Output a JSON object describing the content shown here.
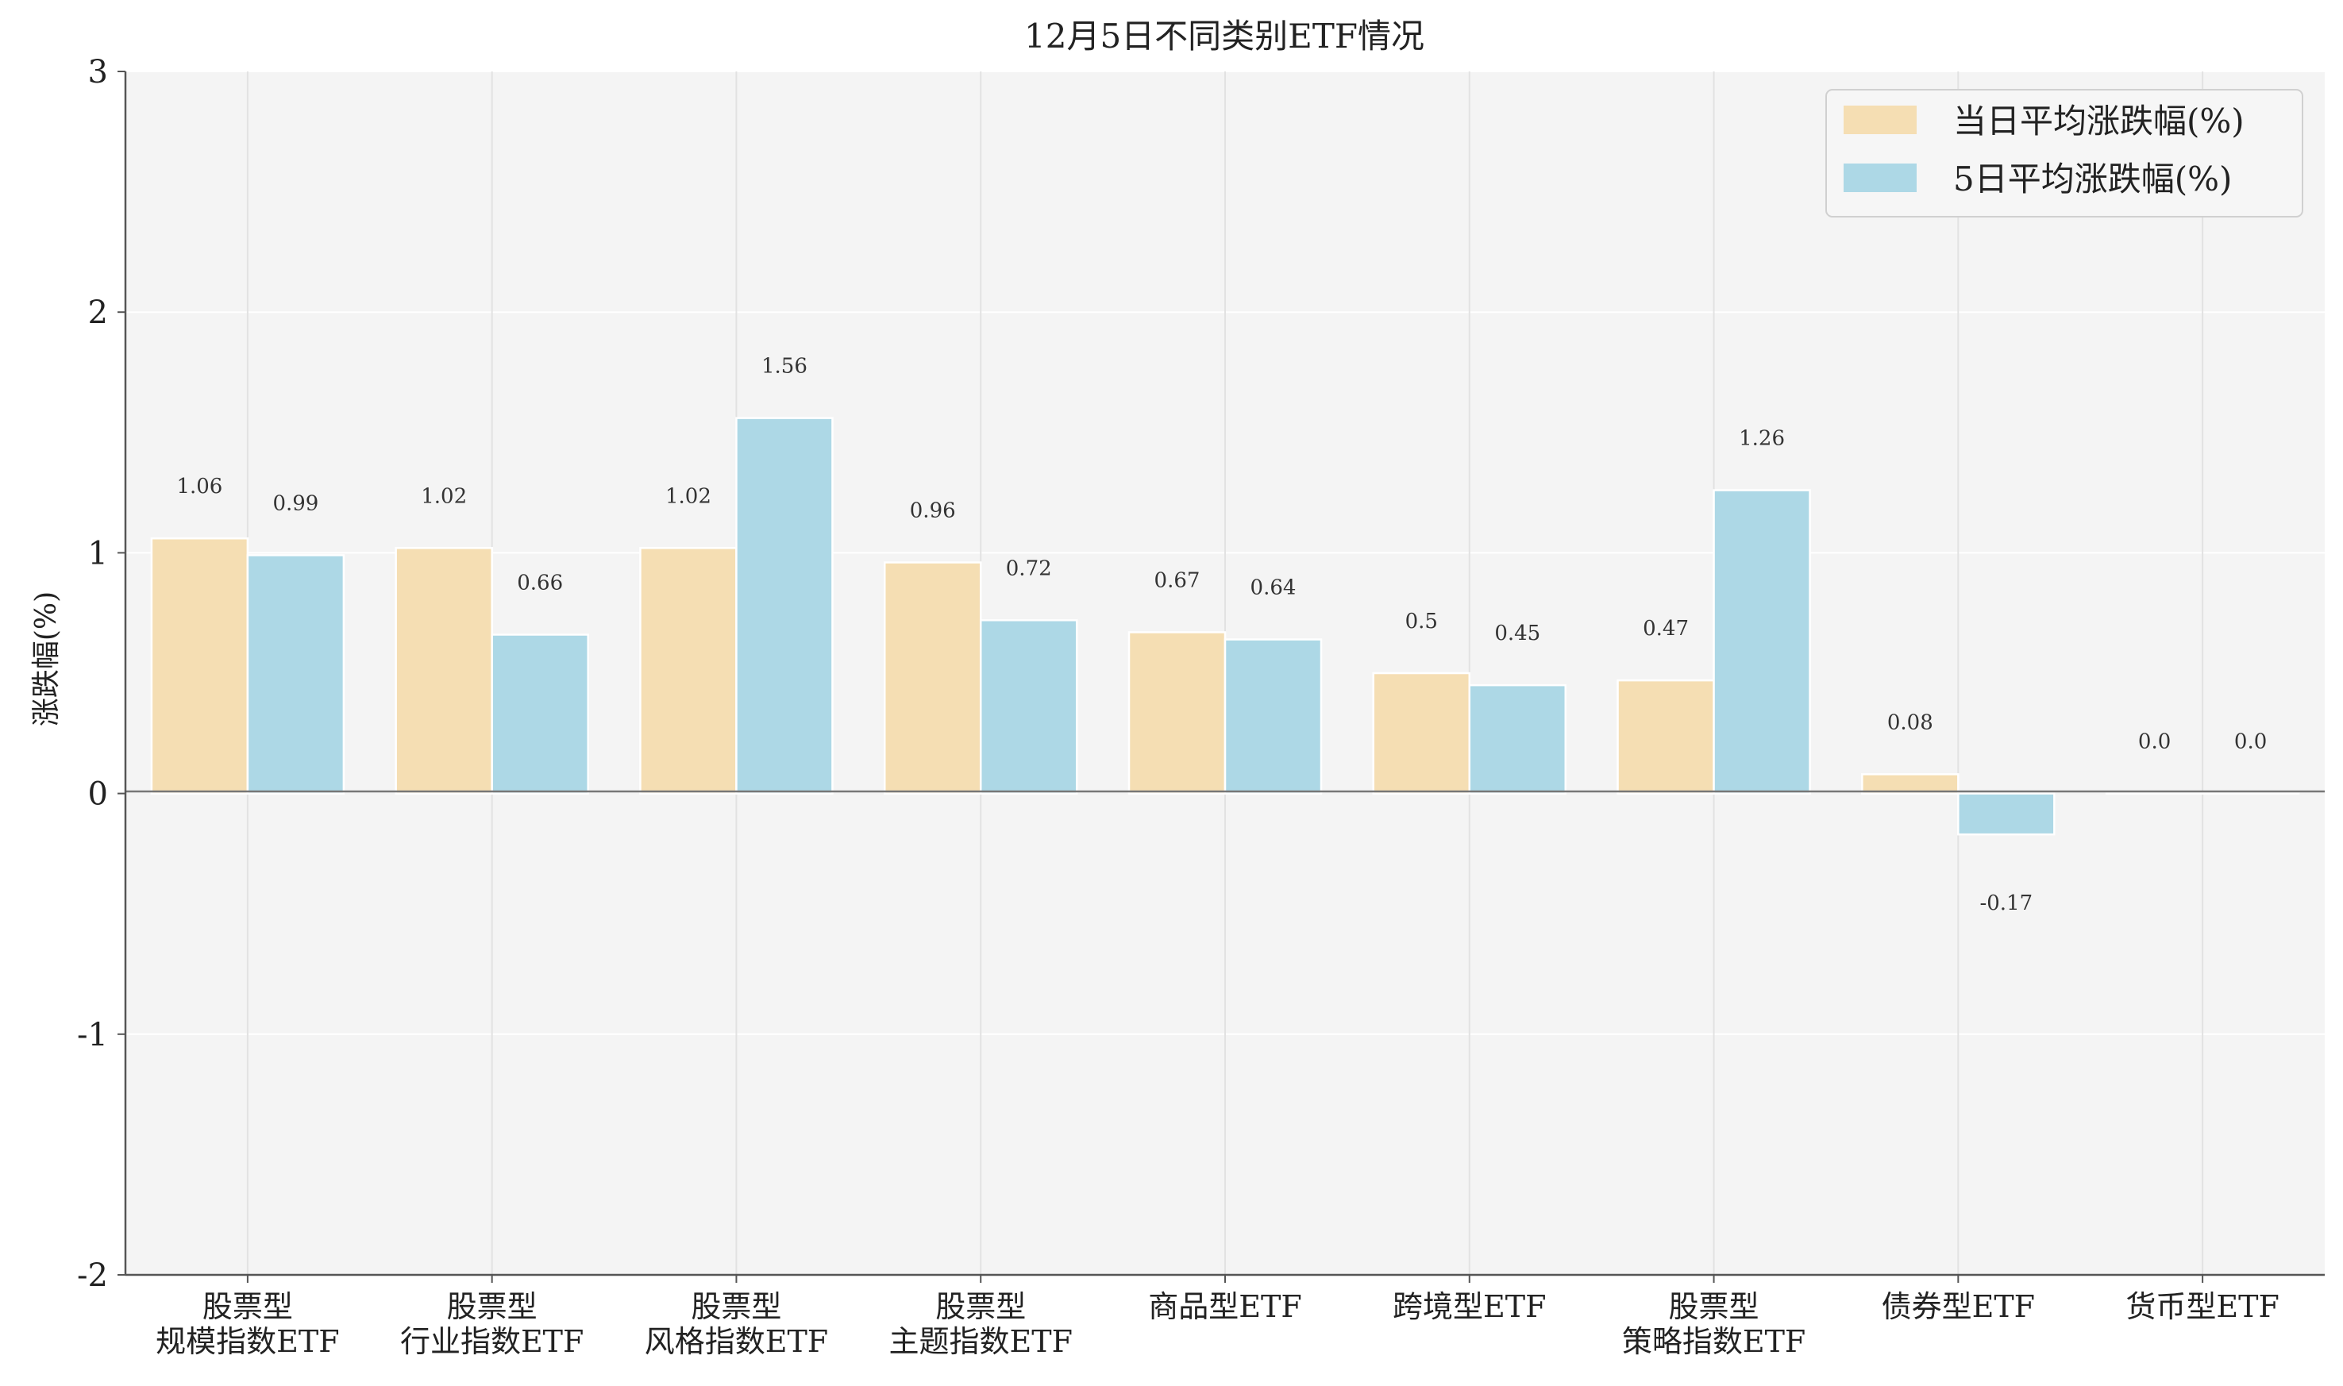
{
  "chart_data": {
    "type": "bar",
    "title": "12月5日不同类别ETF情况",
    "xlabel": "",
    "ylabel": "涨跌幅(%)",
    "ylim": [
      -2,
      3
    ],
    "yticks": [
      -2,
      -1,
      0,
      1,
      2,
      3
    ],
    "grid": true,
    "legend_position": "top-right",
    "categories": [
      [
        "股票型",
        "规模指数ETF"
      ],
      [
        "股票型",
        "行业指数ETF"
      ],
      [
        "股票型",
        "风格指数ETF"
      ],
      [
        "股票型",
        "主题指数ETF"
      ],
      [
        "商品型ETF"
      ],
      [
        "跨境型ETF"
      ],
      [
        "股票型",
        "策略指数ETF"
      ],
      [
        "债券型ETF"
      ],
      [
        "货币型ETF"
      ]
    ],
    "series": [
      {
        "name": "当日平均涨跌幅(%)",
        "color": "#f5deb3",
        "values": [
          1.06,
          1.02,
          1.02,
          0.96,
          0.67,
          0.5,
          0.47,
          0.08,
          0.0
        ],
        "labels": [
          "1.06",
          "1.02",
          "1.02",
          "0.96",
          "0.67",
          "0.5",
          "0.47",
          "0.08",
          "0.0"
        ]
      },
      {
        "name": "5日平均涨跌幅(%)",
        "color": "#add8e6",
        "values": [
          0.99,
          0.66,
          1.56,
          0.72,
          0.64,
          0.45,
          1.26,
          -0.17,
          0.0
        ],
        "labels": [
          "0.99",
          "0.66",
          "1.56",
          "0.72",
          "0.64",
          "0.45",
          "1.26",
          "-0.17",
          "0.0"
        ]
      }
    ]
  }
}
